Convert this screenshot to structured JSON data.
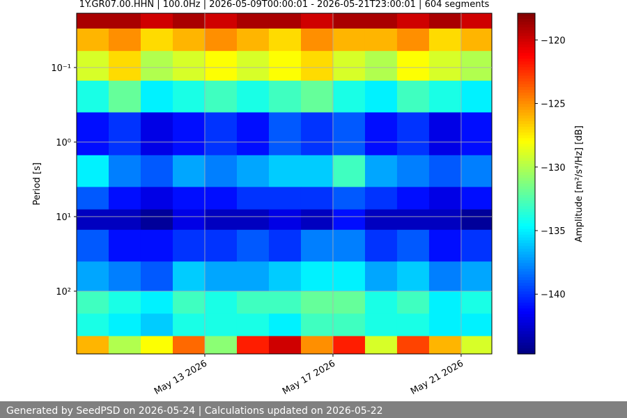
{
  "chart_data": {
    "type": "heatmap",
    "title": "1Y.GR07.00.HHN | 100.0Hz | 2026-05-09T00:00:01 - 2026-05-21T23:00:01 | 604 segments",
    "y_label": "Period [s]",
    "colorbar_label": "Amplitude [m²/s⁴/Hz] [dB]",
    "footer": "Generated by SeedPSD on 2026-05-24 | Calculations updated on 2026-05-22",
    "colormap": "jet",
    "log_y": true,
    "y_inverted": true,
    "grid": true,
    "x": [
      "2026-05-09",
      "2026-05-10",
      "2026-05-11",
      "2026-05-12",
      "2026-05-13",
      "2026-05-14",
      "2026-05-15",
      "2026-05-16",
      "2026-05-17",
      "2026-05-18",
      "2026-05-19",
      "2026-05-20",
      "2026-05-21"
    ],
    "xlim": [
      "2026-05-09T00:00:01",
      "2026-05-21T23:00:01"
    ],
    "xticks": [
      {
        "value": "2026-05-13",
        "label": "May 13 2026"
      },
      {
        "value": "2026-05-17",
        "label": "May 17 2026"
      },
      {
        "value": "2026-05-21",
        "label": "May 21 2026"
      }
    ],
    "y_edges": [
      0.0187,
      0.03,
      0.06,
      0.15,
      0.4,
      1.5,
      4,
      8,
      15,
      40,
      100,
      200,
      400,
      694
    ],
    "ylim": [
      0.0187,
      694
    ],
    "yticks": [
      {
        "value": 0.1,
        "label": "10⁻¹"
      },
      {
        "value": 1,
        "label": "10⁰"
      },
      {
        "value": 10,
        "label": "10¹"
      },
      {
        "value": 100,
        "label": "10²"
      }
    ],
    "clim": [
      -144.7,
      -117.9
    ],
    "cticks": [
      {
        "value": -120,
        "label": "−120"
      },
      {
        "value": -125,
        "label": "−125"
      },
      {
        "value": -130,
        "label": "−130"
      },
      {
        "value": -135,
        "label": "−135"
      },
      {
        "value": -140,
        "label": "−140"
      }
    ],
    "z": [
      [
        -119,
        -119,
        -120,
        -119,
        -120,
        -119,
        -119,
        -120,
        -119,
        -119,
        -120,
        -119,
        -120
      ],
      [
        -126,
        -125,
        -127,
        -126,
        -125,
        -126,
        -127,
        -125,
        -126,
        -126,
        -125,
        -127,
        -126
      ],
      [
        -129,
        -127,
        -130,
        -129,
        -128,
        -129,
        -128,
        -127,
        -129,
        -130,
        -128,
        -129,
        -130
      ],
      [
        -134,
        -132,
        -135,
        -134,
        -133,
        -134,
        -133,
        -132,
        -134,
        -135,
        -133,
        -134,
        -135
      ],
      [
        -141,
        -140,
        -142,
        -141,
        -140,
        -141,
        -139,
        -140,
        -139,
        -141,
        -140,
        -142,
        -141
      ],
      [
        -135,
        -138,
        -139,
        -137,
        -138,
        -137,
        -136,
        -136,
        -133,
        -137,
        -138,
        -139,
        -138
      ],
      [
        -139,
        -141,
        -142,
        -141,
        -141,
        -140,
        -140,
        -140,
        -139,
        -140,
        -141,
        -142,
        -141
      ],
      [
        -143,
        -143,
        -144,
        -142,
        -143,
        -143,
        -142,
        -143,
        -141,
        -143,
        -143,
        -143,
        -144
      ],
      [
        -139,
        -141,
        -141,
        -140,
        -140,
        -139,
        -140,
        -138,
        -138,
        -140,
        -139,
        -141,
        -140
      ],
      [
        -137,
        -138,
        -139,
        -136,
        -137,
        -137,
        -136,
        -135,
        -135,
        -137,
        -136,
        -138,
        -137
      ],
      [
        -133,
        -134,
        -135,
        -133,
        -134,
        -133,
        -133,
        -132,
        -132,
        -134,
        -133,
        -135,
        -134
      ],
      [
        -134,
        -135,
        -136,
        -134,
        -134,
        -134,
        -135,
        -133,
        -133,
        -134,
        -134,
        -135,
        -135
      ],
      [
        -126,
        -130,
        -128,
        -124,
        -131,
        -122,
        -120,
        -125,
        -122,
        -129,
        -123,
        -126,
        -129
      ]
    ]
  }
}
